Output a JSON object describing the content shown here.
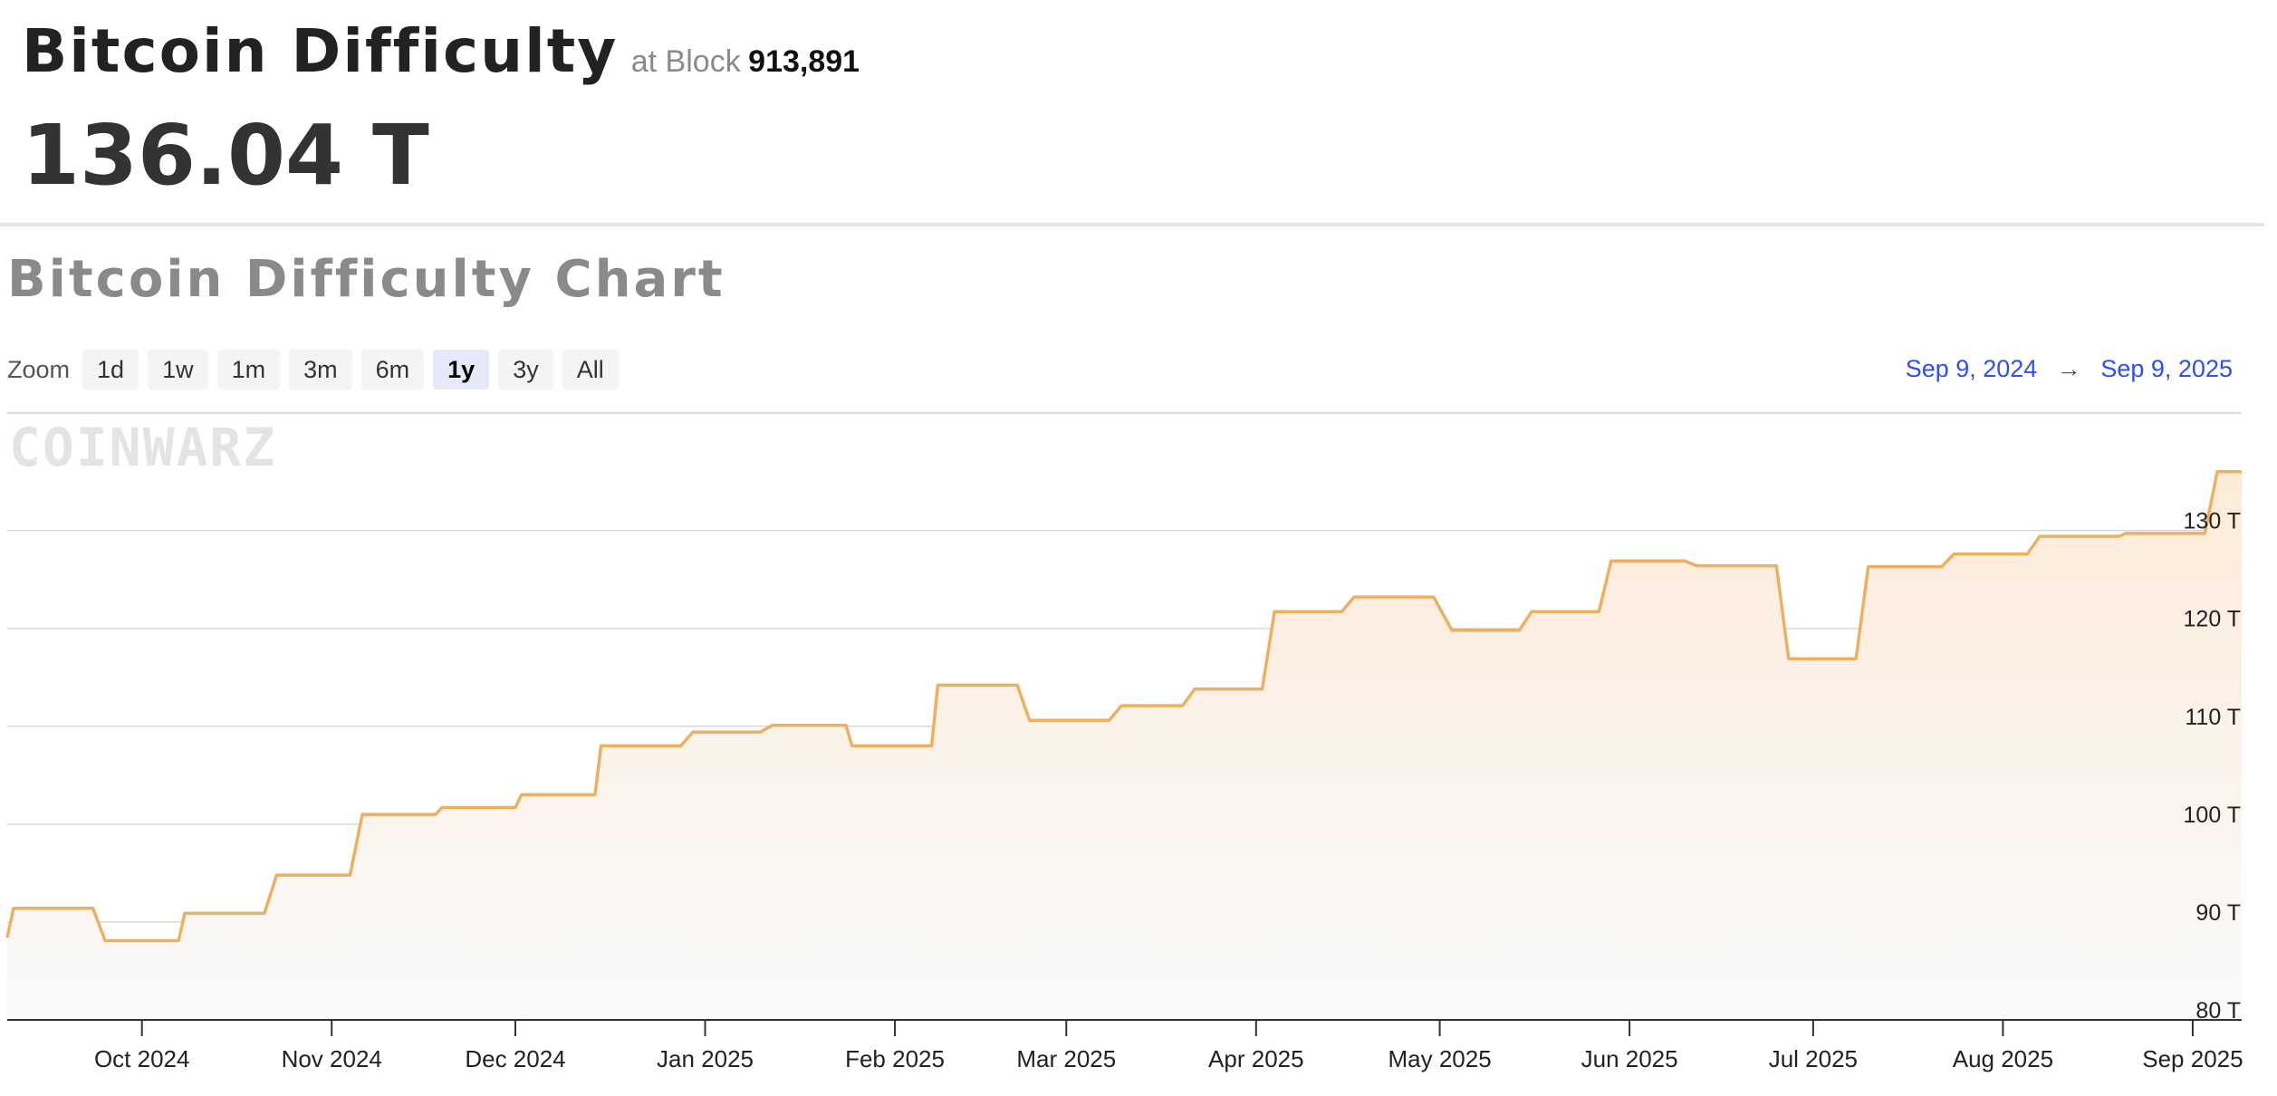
{
  "header": {
    "title": "Bitcoin Difficulty",
    "at_block_label": "at Block",
    "block_number": "913,891",
    "difficulty_value": "136.04 T"
  },
  "chart_section": {
    "title": "Bitcoin Difficulty Chart",
    "zoom_label": "Zoom",
    "zoom_options": [
      "1d",
      "1w",
      "1m",
      "3m",
      "6m",
      "1y",
      "3y",
      "All"
    ],
    "zoom_selected": "1y",
    "range_start": "Sep 9, 2024",
    "range_arrow": "→",
    "range_end": "Sep 9, 2025",
    "watermark": "COINWARZ"
  },
  "colors": {
    "line": "#ecb063",
    "area_top": "#fcebd9",
    "area_bottom": "#fafafa",
    "link": "#2d4ff0",
    "grid": "#d9d9d9"
  },
  "chart_data": {
    "type": "area",
    "title": "Bitcoin Difficulty Chart",
    "xlabel": "",
    "ylabel": "",
    "y_unit": "T",
    "ylim": [
      80,
      137
    ],
    "y_ticks": [
      80,
      90,
      100,
      110,
      120,
      130
    ],
    "y_tick_labels": [
      "80 T",
      "90 T",
      "100 T",
      "110 T",
      "120 T",
      "130 T"
    ],
    "x_range": [
      "2024-09-09",
      "2025-09-09"
    ],
    "x_ticks": [
      "2024-10-01",
      "2024-11-01",
      "2024-12-01",
      "2025-01-01",
      "2025-02-01",
      "2025-03-01",
      "2025-04-01",
      "2025-05-01",
      "2025-06-01",
      "2025-07-01",
      "2025-08-01",
      "2025-09-01"
    ],
    "x_tick_labels": [
      "Oct 2024",
      "Nov 2024",
      "Dec 2024",
      "Jan 2025",
      "Feb 2025",
      "Mar 2025",
      "Apr 2025",
      "May 2025",
      "Jun 2025",
      "Jul 2025",
      "Aug 2025",
      "Sep 2025"
    ],
    "grid": true,
    "legend": "none",
    "series": [
      {
        "points": [
          [
            "2024-09-09",
            88.4
          ],
          [
            "2024-09-10",
            91.4
          ],
          [
            "2024-09-23",
            91.4
          ],
          [
            "2024-09-25",
            88.1
          ],
          [
            "2024-10-07",
            88.1
          ],
          [
            "2024-10-08",
            90.9
          ],
          [
            "2024-10-21",
            90.9
          ],
          [
            "2024-10-23",
            94.8
          ],
          [
            "2024-11-04",
            94.8
          ],
          [
            "2024-11-06",
            101.0
          ],
          [
            "2024-11-18",
            101.0
          ],
          [
            "2024-11-19",
            101.7
          ],
          [
            "2024-12-01",
            101.7
          ],
          [
            "2024-12-02",
            103.0
          ],
          [
            "2024-12-14",
            103.0
          ],
          [
            "2024-12-15",
            108.0
          ],
          [
            "2024-12-28",
            108.0
          ],
          [
            "2024-12-30",
            109.4
          ],
          [
            "2025-01-10",
            109.4
          ],
          [
            "2025-01-12",
            110.1
          ],
          [
            "2025-01-24",
            110.1
          ],
          [
            "2025-01-25",
            108.0
          ],
          [
            "2025-02-07",
            108.0
          ],
          [
            "2025-02-08",
            114.2
          ],
          [
            "2025-02-21",
            114.2
          ],
          [
            "2025-02-23",
            110.6
          ],
          [
            "2025-03-08",
            110.6
          ],
          [
            "2025-03-10",
            112.1
          ],
          [
            "2025-03-20",
            112.1
          ],
          [
            "2025-03-22",
            113.8
          ],
          [
            "2025-04-02",
            113.8
          ],
          [
            "2025-04-04",
            121.7
          ],
          [
            "2025-04-15",
            121.7
          ],
          [
            "2025-04-17",
            123.2
          ],
          [
            "2025-04-30",
            123.2
          ],
          [
            "2025-05-03",
            119.8
          ],
          [
            "2025-05-14",
            119.8
          ],
          [
            "2025-05-16",
            121.7
          ],
          [
            "2025-05-27",
            121.7
          ],
          [
            "2025-05-29",
            126.9
          ],
          [
            "2025-06-10",
            126.9
          ],
          [
            "2025-06-12",
            126.4
          ],
          [
            "2025-06-25",
            126.4
          ],
          [
            "2025-06-27",
            116.9
          ],
          [
            "2025-07-08",
            116.9
          ],
          [
            "2025-07-10",
            126.3
          ],
          [
            "2025-07-22",
            126.3
          ],
          [
            "2025-07-24",
            127.6
          ],
          [
            "2025-08-05",
            127.6
          ],
          [
            "2025-08-07",
            129.4
          ],
          [
            "2025-08-20",
            129.4
          ],
          [
            "2025-08-21",
            129.7
          ],
          [
            "2025-09-03",
            129.7
          ],
          [
            "2025-09-05",
            136.0
          ],
          [
            "2025-09-09",
            136.0
          ]
        ]
      }
    ]
  }
}
